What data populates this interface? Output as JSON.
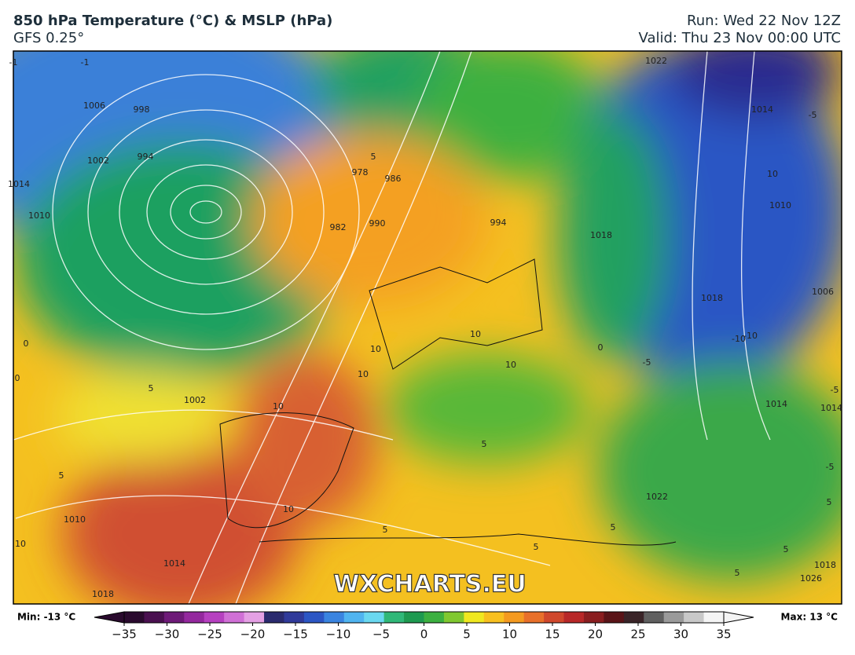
{
  "header": {
    "title": "850 hPa Temperature (°C) & MSLP (hPa)",
    "subtitle": "GFS 0.25°",
    "run": "Run: Wed 22 Nov 12Z",
    "valid": "Valid: Thu 23 Nov 00:00 UTC"
  },
  "map": {
    "watermark": "WXCHARTS.EU",
    "labels": [
      "-1",
      "1006",
      "998",
      "1002",
      "994",
      "1014",
      "1010",
      "5",
      "0",
      "0",
      "5",
      "1002",
      "10",
      "5",
      "978",
      "986",
      "982",
      "990",
      "994",
      "10",
      "10",
      "10",
      "10",
      "1022",
      "10",
      "-5",
      "1014",
      "-10",
      "1010",
      "1018",
      "1006",
      "-10",
      "-5",
      "-5",
      "1014",
      "0",
      "5",
      "5",
      "5",
      "10",
      "10",
      "1010",
      "1014",
      "1018",
      "5",
      "5",
      "5",
      "1022",
      "1026",
      "1014",
      "1018",
      "-1",
      "-5",
      "5",
      "1018"
    ]
  },
  "colorbar": {
    "min_label": "Min: -13 °C",
    "max_label": "Max: 13 °C",
    "ticks": [
      {
        "value": -35,
        "label": "−35"
      },
      {
        "value": -30,
        "label": "−30"
      },
      {
        "value": -25,
        "label": "−25"
      },
      {
        "value": -20,
        "label": "−20"
      },
      {
        "value": -15,
        "label": "−15"
      },
      {
        "value": -10,
        "label": "−10"
      },
      {
        "value": -5,
        "label": "−5"
      },
      0,
      5,
      10,
      15,
      20,
      25,
      30,
      35
    ],
    "colors": [
      "#2a0a2e",
      "#4a1050",
      "#6e1a78",
      "#94289e",
      "#b640c0",
      "#d070d6",
      "#e4a0e4",
      "#2a2a6e",
      "#303a9a",
      "#2c56c4",
      "#3a84e0",
      "#50b4f0",
      "#6ad8f0",
      "#30b878",
      "#1e9a50",
      "#3cb040",
      "#80c830",
      "#f0e820",
      "#f8c020",
      "#f49a20",
      "#e8702a",
      "#d0482c",
      "#b82828",
      "#8a1e20",
      "#5a1418",
      "#3a2428",
      "#606060",
      "#9a9a9a",
      "#c8c8c8",
      "#f4f4f4"
    ]
  }
}
